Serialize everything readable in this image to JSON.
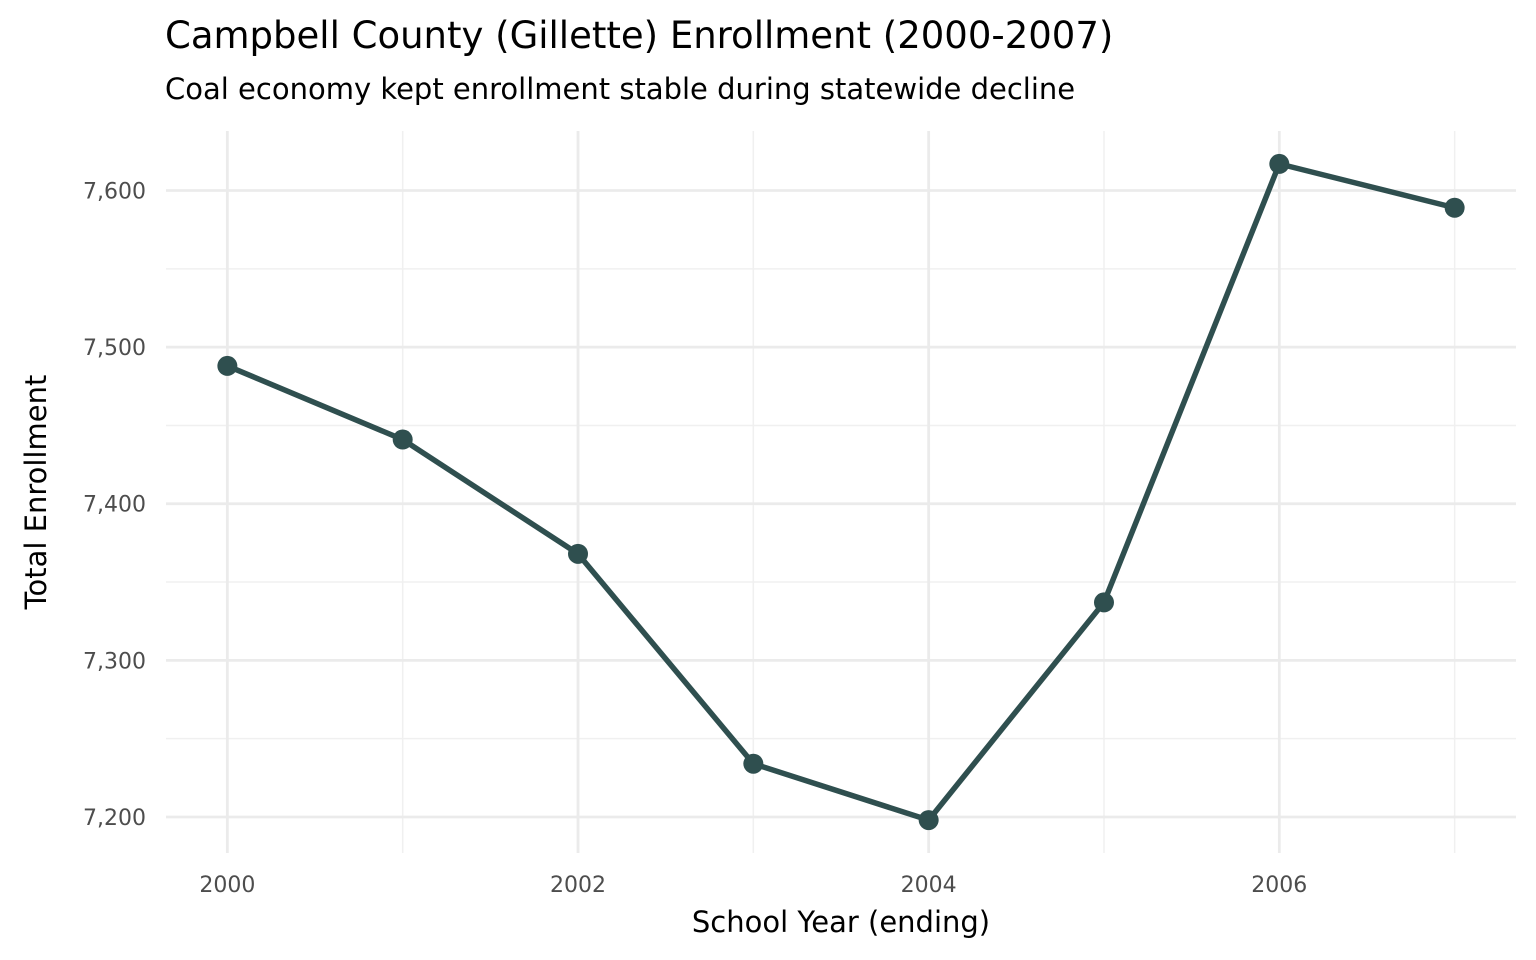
{
  "chart_data": {
    "type": "line",
    "title": "Campbell County (Gillette) Enrollment (2000-2007)",
    "subtitle": "Coal economy kept enrollment stable during statewide decline",
    "xlabel": "School Year (ending)",
    "ylabel": "Total Enrollment",
    "x": [
      2000,
      2001,
      2002,
      2003,
      2004,
      2005,
      2006,
      2007
    ],
    "values": [
      7488,
      7441,
      7368,
      7234,
      7198,
      7337,
      7617,
      7589
    ],
    "xlim": [
      1999.65,
      2007.35
    ],
    "ylim": [
      7177,
      7638
    ],
    "x_ticks": [
      2000,
      2002,
      2004,
      2006
    ],
    "x_tick_labels": [
      "2000",
      "2002",
      "2004",
      "2006"
    ],
    "y_ticks": [
      7200,
      7300,
      7400,
      7500,
      7600
    ],
    "y_tick_labels": [
      "7,200",
      "7,300",
      "7,400",
      "7,500",
      "7,600"
    ],
    "grid": true,
    "line_color": "#2f4f4f"
  }
}
